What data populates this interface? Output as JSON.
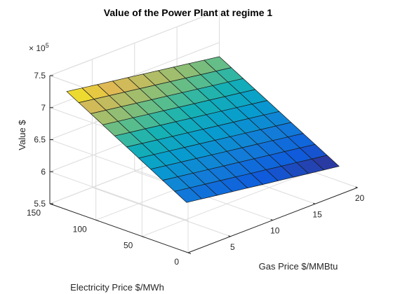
{
  "chart_data": {
    "type": "surface",
    "title": "Value of the Power Plant at regime 1",
    "xlabel": "Gas Price $/MMBtu",
    "ylabel": "Electricity Price $/MWh",
    "zlabel": "Value $",
    "z_exponent": "×10^5",
    "z_exponent_base": "× 10",
    "z_exponent_power": "5",
    "colormap": "parula",
    "grid": true,
    "xlim": [
      0,
      20
    ],
    "ylim": [
      0,
      150
    ],
    "zlim": [
      550000,
      750000
    ],
    "x_ticks": [
      "5",
      "10",
      "15",
      "20"
    ],
    "y_ticks": [
      "0",
      "50",
      "100",
      "150"
    ],
    "z_ticks": [
      "5.5",
      "6",
      "6.5",
      "7",
      "7.5"
    ],
    "grid_x_range": [
      2,
      20
    ],
    "grid_y_range": [
      20,
      150
    ],
    "grid_x_count": 10,
    "grid_y_count": 10,
    "corners": {
      "gas_2_elec_150": 715000,
      "gas_20_elec_150": 678000,
      "gas_2_elec_20": 608000,
      "gas_20_elec_20": 573000
    }
  }
}
